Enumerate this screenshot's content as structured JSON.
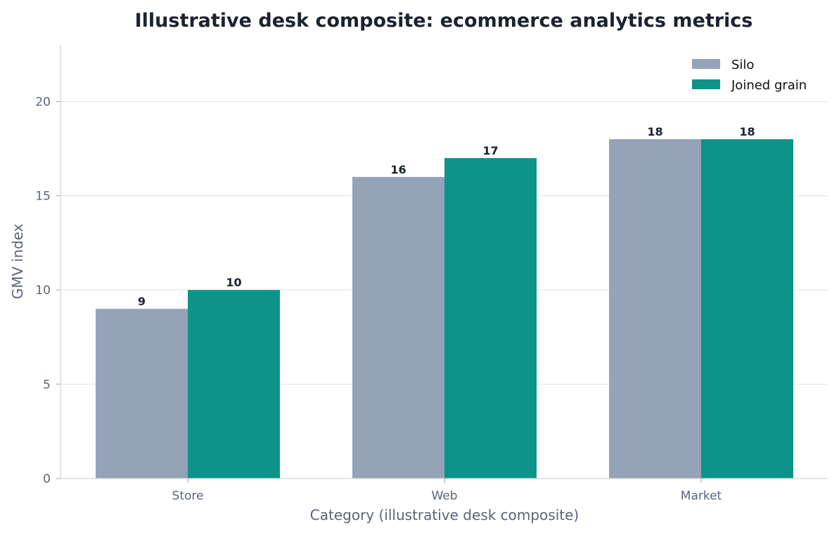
{
  "chart_data": {
    "type": "bar",
    "title": "Illustrative desk composite: ecommerce analytics metrics",
    "xlabel": "Category (illustrative desk composite)",
    "ylabel": "GMV index",
    "categories": [
      "Store",
      "Web",
      "Market"
    ],
    "series": [
      {
        "name": "Silo",
        "values": [
          9,
          16,
          18
        ],
        "color": "#94a3b8"
      },
      {
        "name": "Joined grain",
        "values": [
          10,
          17,
          18
        ],
        "color": "#0d9488"
      }
    ],
    "ylim": [
      0,
      23
    ],
    "yticks": [
      0,
      5,
      10,
      15,
      20
    ],
    "grid": true,
    "legend_position": "top-right"
  }
}
